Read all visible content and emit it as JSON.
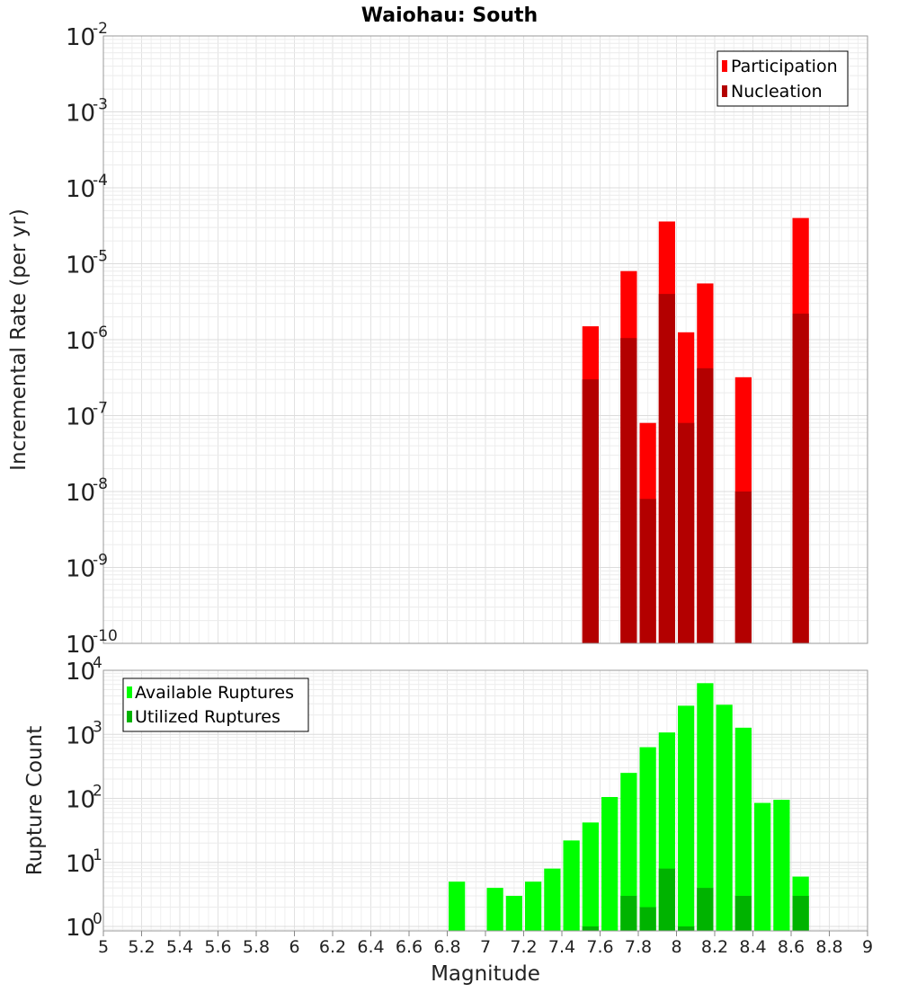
{
  "chart_data": [
    {
      "type": "bar",
      "title": "Waiohau: South",
      "ylabel": "Incremental Rate (per yr)",
      "xlabel": "",
      "xlim": [
        5,
        9
      ],
      "ylim_exp": [
        -10,
        -2
      ],
      "yscale": "log",
      "bar_width": 0.1,
      "legend": {
        "position": "top-right",
        "entries": [
          {
            "label": "Participation",
            "color": "#ff0000"
          },
          {
            "label": "Nucleation",
            "color": "#b30000"
          }
        ]
      },
      "series": [
        {
          "name": "Participation",
          "color": "#ff0000",
          "points": [
            {
              "x": 7.55,
              "y": 1.5e-06
            },
            {
              "x": 7.75,
              "y": 8e-06
            },
            {
              "x": 7.85,
              "y": 8e-08
            },
            {
              "x": 7.95,
              "y": 3.6e-05
            },
            {
              "x": 8.05,
              "y": 1.25e-06
            },
            {
              "x": 8.15,
              "y": 5.5e-06
            },
            {
              "x": 8.35,
              "y": 3.2e-07
            },
            {
              "x": 8.65,
              "y": 4e-05
            }
          ]
        },
        {
          "name": "Nucleation",
          "color": "#b30000",
          "points": [
            {
              "x": 7.55,
              "y": 3e-07
            },
            {
              "x": 7.75,
              "y": 1.05e-06
            },
            {
              "x": 7.85,
              "y": 8e-09
            },
            {
              "x": 7.95,
              "y": 4e-06
            },
            {
              "x": 8.05,
              "y": 8e-08
            },
            {
              "x": 8.15,
              "y": 4.2e-07
            },
            {
              "x": 8.35,
              "y": 1e-08
            },
            {
              "x": 8.65,
              "y": 2.2e-06
            }
          ]
        }
      ]
    },
    {
      "type": "bar",
      "title": "",
      "ylabel": "Rupture Count",
      "xlabel": "Magnitude",
      "xlim": [
        5,
        9
      ],
      "ylim_exp": [
        -0.07,
        4
      ],
      "yscale": "log",
      "bar_width": 0.1,
      "xticks": [
        "5",
        "5.2",
        "5.4",
        "5.6",
        "5.8",
        "6",
        "6.2",
        "6.4",
        "6.6",
        "6.8",
        "7",
        "7.2",
        "7.4",
        "7.6",
        "7.8",
        "8",
        "8.2",
        "8.4",
        "8.6",
        "8.8",
        "9"
      ],
      "legend": {
        "position": "top-left",
        "entries": [
          {
            "label": "Available Ruptures",
            "color": "#00ff00"
          },
          {
            "label": "Utilized Ruptures",
            "color": "#00b300"
          }
        ]
      },
      "series": [
        {
          "name": "Available Ruptures",
          "color": "#00ff00",
          "points": [
            {
              "x": 6.85,
              "y": 5
            },
            {
              "x": 7.05,
              "y": 4
            },
            {
              "x": 7.15,
              "y": 3
            },
            {
              "x": 7.25,
              "y": 5
            },
            {
              "x": 7.35,
              "y": 8
            },
            {
              "x": 7.45,
              "y": 22
            },
            {
              "x": 7.55,
              "y": 42
            },
            {
              "x": 7.65,
              "y": 105
            },
            {
              "x": 7.75,
              "y": 250
            },
            {
              "x": 7.85,
              "y": 630
            },
            {
              "x": 7.95,
              "y": 1070
            },
            {
              "x": 8.05,
              "y": 2800
            },
            {
              "x": 8.15,
              "y": 6300
            },
            {
              "x": 8.25,
              "y": 2900
            },
            {
              "x": 8.35,
              "y": 1270
            },
            {
              "x": 8.45,
              "y": 85
            },
            {
              "x": 8.55,
              "y": 95
            },
            {
              "x": 8.65,
              "y": 6
            }
          ]
        },
        {
          "name": "Utilized Ruptures",
          "color": "#00b300",
          "points": [
            {
              "x": 7.55,
              "y": 1
            },
            {
              "x": 7.75,
              "y": 3
            },
            {
              "x": 7.85,
              "y": 2
            },
            {
              "x": 7.95,
              "y": 8
            },
            {
              "x": 8.05,
              "y": 1
            },
            {
              "x": 8.15,
              "y": 4
            },
            {
              "x": 8.35,
              "y": 3
            },
            {
              "x": 8.65,
              "y": 3
            }
          ]
        }
      ]
    }
  ]
}
